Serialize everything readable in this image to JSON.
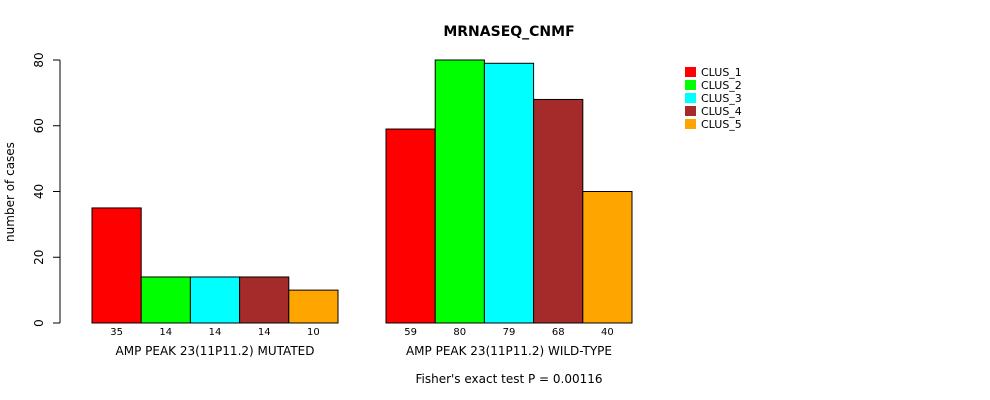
{
  "chart_data": {
    "type": "bar",
    "title": "MRNASEQ_CNMF",
    "ylabel": "number of cases",
    "xlabel": "",
    "ylim": [
      0,
      80
    ],
    "yticks": [
      0,
      20,
      40,
      60,
      80
    ],
    "groups": [
      "AMP PEAK 23(11P11.2) MUTATED",
      "AMP PEAK 23(11P11.2) WILD-TYPE"
    ],
    "series": [
      {
        "name": "CLUS_1",
        "color": "#ff0000",
        "values": [
          35,
          59
        ]
      },
      {
        "name": "CLUS_2",
        "color": "#00ff00",
        "values": [
          14,
          80
        ]
      },
      {
        "name": "CLUS_3",
        "color": "#00ffff",
        "values": [
          14,
          79
        ]
      },
      {
        "name": "CLUS_4",
        "color": "#a52a2a",
        "values": [
          14,
          68
        ]
      },
      {
        "name": "CLUS_5",
        "color": "#ffa500",
        "values": [
          10,
          40
        ]
      }
    ],
    "legend_position": "top-right",
    "annotation": "Fisher's exact test P = 0.00116"
  }
}
